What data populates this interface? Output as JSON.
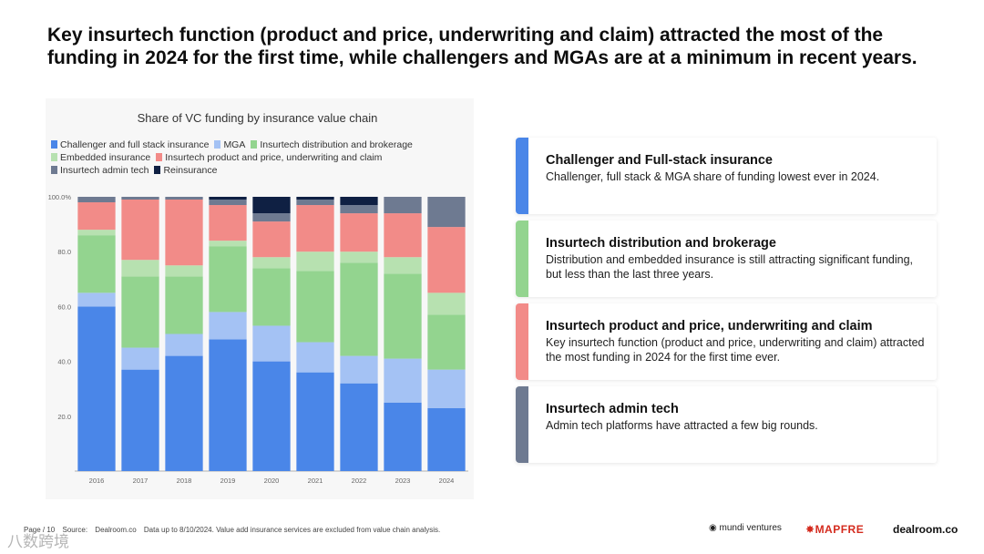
{
  "headline": "Key insurtech function (product and price, underwriting and claim) attracted the most of the funding in 2024 for the first time, while challengers and MGAs are at a minimum in recent years.",
  "chart_data": {
    "type": "bar",
    "stacked": true,
    "title": "Share of VC funding by insurance value chain",
    "xlabel": "",
    "ylabel": "",
    "ylim": [
      0,
      100
    ],
    "yticks": [
      "20.0",
      "40.0",
      "60.0",
      "80.0",
      "100.0%"
    ],
    "categories": [
      "2016",
      "2017",
      "2018",
      "2019",
      "2020",
      "2021",
      "2022",
      "2023",
      "2024"
    ],
    "series": [
      {
        "name": "Challenger and full stack insurance",
        "color": "#4a86e8",
        "values": [
          60,
          37,
          42,
          48,
          40,
          36,
          32,
          25,
          23
        ]
      },
      {
        "name": "MGA",
        "color": "#a4c2f4",
        "values": [
          5,
          8,
          8,
          10,
          13,
          11,
          10,
          16,
          14
        ]
      },
      {
        "name": "Insurtech distribution and brokerage",
        "color": "#93d48f",
        "values": [
          21,
          26,
          21,
          24,
          21,
          26,
          34,
          31,
          20
        ]
      },
      {
        "name": "Embedded insurance",
        "color": "#b7e1b0",
        "values": [
          2,
          6,
          4,
          2,
          4,
          7,
          4,
          6,
          8
        ]
      },
      {
        "name": "Insurtech product and price, underwriting and claim",
        "color": "#f28b88",
        "values": [
          10,
          22,
          24,
          13,
          13,
          17,
          14,
          16,
          24
        ]
      },
      {
        "name": "Insurtech admin tech",
        "color": "#6e7a91",
        "values": [
          2,
          1,
          1,
          2,
          3,
          2,
          3,
          6,
          11
        ]
      },
      {
        "name": "Reinsurance",
        "color": "#0f2043",
        "values": [
          0,
          0,
          0,
          1,
          6,
          1,
          3,
          0,
          0
        ]
      }
    ]
  },
  "cards": [
    {
      "title": "Challenger and Full-stack insurance",
      "text": "Challenger, full stack & MGA share of funding lowest ever in 2024.",
      "color": "#4a86e8"
    },
    {
      "title": "Insurtech distribution and brokerage",
      "text": "Distribution and embedded insurance is still attracting significant funding, but less than the last three years.",
      "color": "#93d48f"
    },
    {
      "title": "Insurtech product and price, underwriting and claim",
      "text": "Key insurtech function (product and price, underwriting and claim) attracted the most funding in 2024 for the first time ever.",
      "color": "#f28b88"
    },
    {
      "title": "Insurtech admin tech",
      "text": "Admin tech platforms have attracted a few big rounds.",
      "color": "#6e7a91"
    }
  ],
  "footer": {
    "page": "Page / 10",
    "source": "Source:",
    "source_name": "Dealroom.co",
    "note": "Data up to 8/10/2024. Value add insurance services are excluded from value chain analysis."
  },
  "logos": {
    "mundi": "mundi ventures",
    "mapfre": "MAPFRE",
    "dealroom": "dealroom.co"
  },
  "watermark": "八数跨境"
}
